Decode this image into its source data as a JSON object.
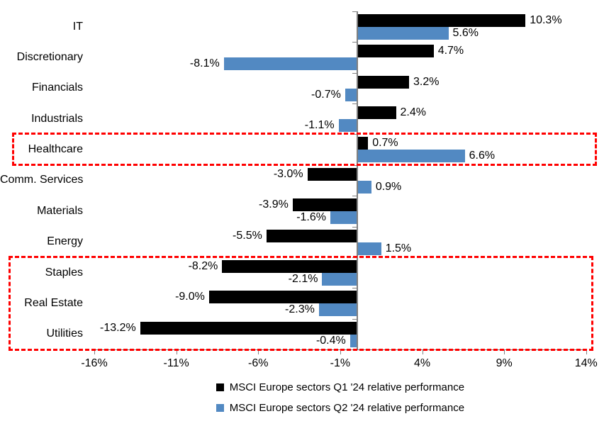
{
  "chart_data": {
    "type": "bar",
    "orientation": "horizontal",
    "title": "",
    "xlabel": "",
    "ylabel": "",
    "categories": [
      "IT",
      "Discretionary",
      "Financials",
      "Industrials",
      "Healthcare",
      "Comm. Services",
      "Materials",
      "Energy",
      "Staples",
      "Real Estate",
      "Utilities"
    ],
    "series": [
      {
        "name": "MSCI Europe sectors Q1 '24 relative performance",
        "color": "#000000",
        "values": [
          10.3,
          4.7,
          3.2,
          2.4,
          0.7,
          -3.0,
          -3.9,
          -5.5,
          -8.2,
          -9.0,
          -13.2
        ],
        "labels": [
          "10.3%",
          "4.7%",
          "3.2%",
          "2.4%",
          "0.7%",
          "-3.0%",
          "-3.9%",
          "-5.5%",
          "-8.2%",
          "-9.0%",
          "-13.2%"
        ]
      },
      {
        "name": "MSCI Europe sectors Q2 '24 relative performance",
        "color": "#5289C2",
        "values": [
          5.6,
          -8.1,
          -0.7,
          -1.1,
          6.6,
          0.9,
          -1.6,
          1.5,
          -2.1,
          -2.3,
          -0.4
        ],
        "labels": [
          "5.6%",
          "-8.1%",
          "-0.7%",
          "-1.1%",
          "6.6%",
          "0.9%",
          "-1.6%",
          "1.5%",
          "-2.1%",
          "-2.3%",
          "-0.4%"
        ]
      }
    ],
    "x_axis": {
      "min": -16.5,
      "max": 14.5,
      "ticks": [
        -16,
        -11,
        -6,
        -1,
        4,
        9,
        14
      ],
      "tick_labels": [
        "-16%",
        "-11%",
        "-6%",
        "-1%",
        "4%",
        "9%",
        "14%"
      ]
    },
    "grid": "off",
    "axis_color": "#808080",
    "highlight_color": "#FF0000",
    "highlights": [
      {
        "name": "highlight-box-healthcare",
        "start_row": 4,
        "end_row": 4
      },
      {
        "name": "highlight-box-defensives",
        "start_row": 8,
        "end_row": 10
      }
    ],
    "legend_position": "bottom",
    "legend": [
      {
        "label": "MSCI Europe sectors Q1 '24 relative performance",
        "color": "#000000"
      },
      {
        "label": "MSCI Europe sectors Q2 '24 relative performance",
        "color": "#5289C2"
      }
    ]
  }
}
